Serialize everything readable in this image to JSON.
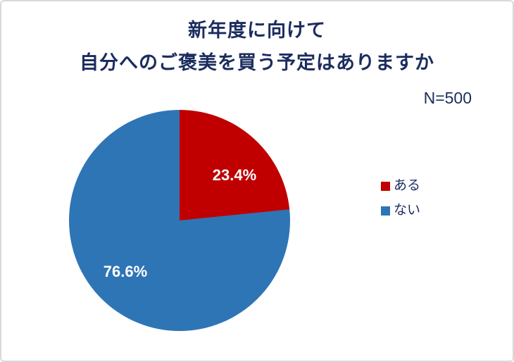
{
  "chart": {
    "title_line1": "新年度に向けて",
    "title_line2": "自分へのご褒美を買う予定はありますか",
    "sample_label": "N=500"
  },
  "chart_data": {
    "type": "pie",
    "title": "新年度に向けて 自分へのご褒美を買う予定はありますか",
    "annotation": "N=500",
    "start_angle_deg": 0,
    "direction": "clockwise",
    "legend_position": "right",
    "data_labels": "inside",
    "slices": [
      {
        "label": "ある",
        "value_pct": 23.4,
        "display": "23.4%",
        "color": "#c00000"
      },
      {
        "label": "ない",
        "value_pct": 76.6,
        "display": "76.6%",
        "color": "#2e75b6"
      }
    ],
    "colors": {
      "title_text": "#1b2c5e",
      "data_label_text": "#ffffff",
      "frame_border": "#d9d9d9",
      "background": "#ffffff"
    }
  }
}
